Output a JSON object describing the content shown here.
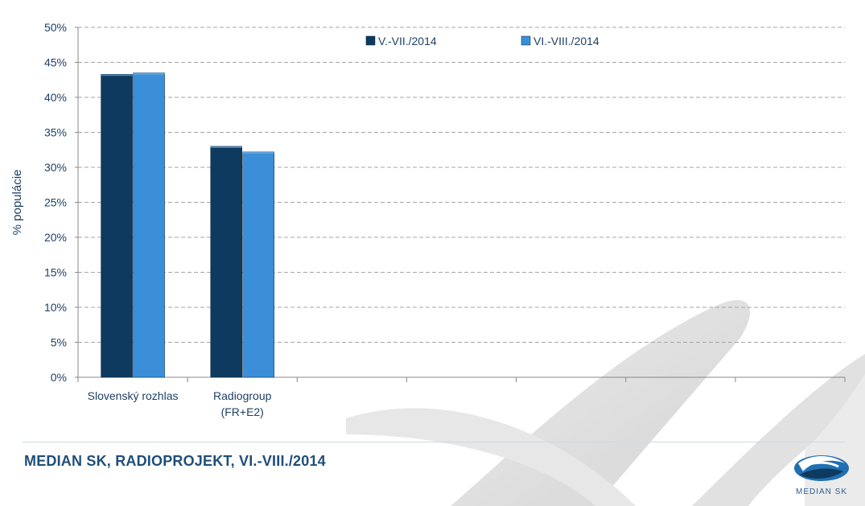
{
  "chart_data": {
    "type": "bar",
    "categories": [
      "Slovenský rozhlas",
      "Radiogroup (FR+E2)"
    ],
    "category_lines": [
      [
        "Slovenský rozhlas"
      ],
      [
        "Radiogroup",
        "(FR+E2)"
      ]
    ],
    "empty_slots": 5,
    "series": [
      {
        "name": "V.-VII./2014",
        "values": [
          43.3,
          33.0
        ],
        "color": "#0d3a5e"
      },
      {
        "name": "VI.-VIII./2014",
        "values": [
          43.5,
          32.2
        ],
        "color": "#3a8fd8"
      }
    ],
    "ylabel": "% populácie",
    "ylim": [
      0,
      50
    ],
    "yticks": [
      0,
      5,
      10,
      15,
      20,
      25,
      30,
      35,
      40,
      45,
      50
    ],
    "ytick_labels": [
      "0%",
      "5%",
      "10%",
      "15%",
      "20%",
      "25%",
      "30%",
      "35%",
      "40%",
      "45%",
      "50%"
    ],
    "grid": true,
    "legend_position": "top"
  },
  "footer": {
    "title": "MEDIAN SK, RADIOPROJEKT, VI.-VIII./2014",
    "logo_text": "MEDIAN SK"
  },
  "colors": {
    "axis_text": "#1f3f66",
    "grid": "#a6a6a6",
    "title": "#1f4e79"
  }
}
